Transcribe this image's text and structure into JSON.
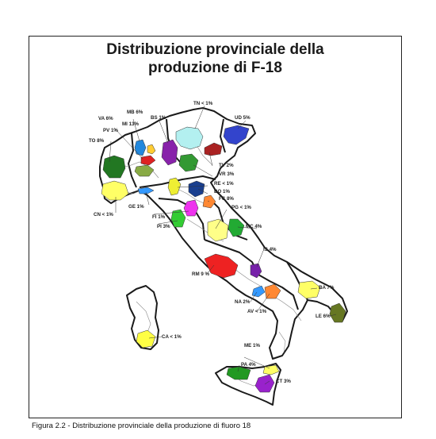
{
  "title_line1": "Distribuzione provinciale della",
  "title_line2": "produzione di F-18",
  "caption": "Figura 2.2 - Distribuzione provinciale della produzione di fluoro 18",
  "provinces": [
    {
      "code": "TN",
      "value": "TN < 1%",
      "color": "#b3f0f0"
    },
    {
      "code": "UD",
      "value": "UD  5%",
      "color": "#3344cc"
    },
    {
      "code": "MB",
      "value": "MB  6%",
      "color": "#ffcc33"
    },
    {
      "code": "VA",
      "value": "VA 6%",
      "color": "#2288dd"
    },
    {
      "code": "MI",
      "value": "MI  13%",
      "color": "#dd2222"
    },
    {
      "code": "BS",
      "value": "BS 1%",
      "color": "#8822aa"
    },
    {
      "code": "PV",
      "value": "PV  1%",
      "color": "#88aa44"
    },
    {
      "code": "TO",
      "value": "TO  8%",
      "color": "#227722"
    },
    {
      "code": "TV",
      "value": "TV  2%",
      "color": "#aa2222"
    },
    {
      "code": "VR",
      "value": "VR  3%",
      "color": "#339933"
    },
    {
      "code": "RE",
      "value": "RE < 1%",
      "color": "#eeee33"
    },
    {
      "code": "BO",
      "value": "BO  1%",
      "color": "#1a3f8f"
    },
    {
      "code": "FC",
      "value": "FC  8%",
      "color": "#ff8833"
    },
    {
      "code": "GE",
      "value": "GE 1%",
      "color": "#3399ff"
    },
    {
      "code": "PG",
      "value": "PG < 1%",
      "color": "#ffff88"
    },
    {
      "code": "CN",
      "value": "CN < 1%",
      "color": "#ffff66"
    },
    {
      "code": "FI",
      "value": "FI   1%",
      "color": "#ee33ee"
    },
    {
      "code": "PI",
      "value": "PI  3%",
      "color": "#33cc33"
    },
    {
      "code": "MC",
      "value": "MC  4%",
      "color": "#22aa33"
    },
    {
      "code": "IS",
      "value": "IS  4%",
      "color": "#7722aa"
    },
    {
      "code": "RM",
      "value": "RM  9 %",
      "color": "#ee2222"
    },
    {
      "code": "BA",
      "value": "BA  7%",
      "color": "#ffff66"
    },
    {
      "code": "NA",
      "value": "NA  2%",
      "color": "#3399ff"
    },
    {
      "code": "AV",
      "value": "AV < 1%",
      "color": "#ff8833"
    },
    {
      "code": "LE",
      "value": "LE 6%",
      "color": "#667722"
    },
    {
      "code": "CA",
      "value": "CA < 1%",
      "color": "#ffff44"
    },
    {
      "code": "ME",
      "value": "ME 1%",
      "color": "#ffff66"
    },
    {
      "code": "PA",
      "value": "PA  4%",
      "color": "#229922"
    },
    {
      "code": "CT",
      "value": "CT  3%",
      "color": "#9922cc"
    }
  ]
}
